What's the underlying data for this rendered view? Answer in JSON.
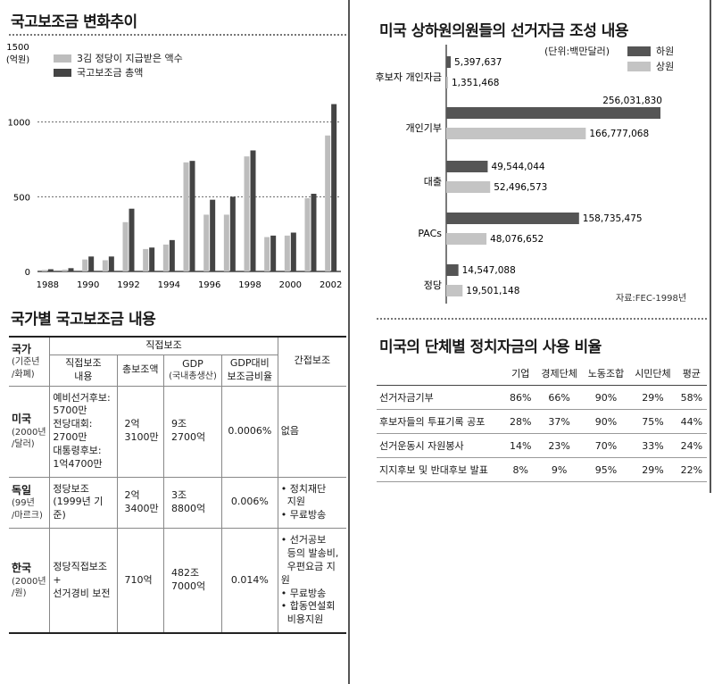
{
  "left_chart": {
    "title": "국고보조금 변화추이",
    "y_label_value": "1500",
    "y_label_unit": "(억원)",
    "ticks": [
      "1000",
      "500",
      "0"
    ],
    "x_tick_labels": [
      "1988",
      "1990",
      "1992",
      "1994",
      "1996",
      "1998",
      "2000",
      "2002"
    ],
    "legend": [
      "3김 정당이 지급받은 액수",
      "국고보조금 총액"
    ],
    "colors": {
      "light": "#bdbdbd",
      "dark": "#444444"
    }
  },
  "right_chart": {
    "title": "미국 상하원의원들의 선거자금 조성 내용",
    "unit": "(단위:백만달러)",
    "legend": [
      "하원",
      "상원"
    ],
    "categories": [
      "후보자 개인자금",
      "개인기부",
      "대출",
      "PACs",
      "정당"
    ],
    "value_labels": [
      [
        "5,397,637",
        "1,351,468"
      ],
      [
        "256,031,830",
        "166,777,068"
      ],
      [
        "49,544,044",
        "52,496,573"
      ],
      [
        "158,735,475",
        "48,076,652"
      ],
      [
        "14,547,088",
        "19,501,148"
      ]
    ],
    "source": "자료:FEC-1998년",
    "colors": {
      "house": "#555555",
      "senate": "#c4c4c4"
    }
  },
  "chart_data": [
    {
      "type": "bar",
      "title": "국고보조금 변화추이",
      "ylabel": "(억원)",
      "ylim": [
        0,
        1500
      ],
      "categories": [
        "1988",
        "1989",
        "1990",
        "1991",
        "1992",
        "1993",
        "1994",
        "1995",
        "1996",
        "1997",
        "1998",
        "1999",
        "2000",
        "2001",
        "2002"
      ],
      "series": [
        {
          "name": "3김 정당이 지급받은 액수",
          "values": [
            10,
            12,
            80,
            75,
            330,
            150,
            180,
            730,
            380,
            380,
            770,
            230,
            240,
            490,
            910
          ]
        },
        {
          "name": "국고보조금 총액",
          "values": [
            15,
            22,
            100,
            100,
            420,
            160,
            210,
            740,
            480,
            500,
            810,
            240,
            260,
            520,
            1120
          ]
        }
      ],
      "grid": true,
      "legend_position": "top-left"
    },
    {
      "type": "bar",
      "orientation": "horizontal",
      "title": "미국 상하원의원들의 선거자금 조성 내용",
      "unit": "(단위:백만달러)",
      "categories": [
        "후보자 개인자금",
        "개인기부",
        "대출",
        "PACs",
        "정당"
      ],
      "series": [
        {
          "name": "하원",
          "values": [
            5397637,
            256031830,
            49544044,
            158735475,
            14547088
          ]
        },
        {
          "name": "상원",
          "values": [
            1351468,
            166777068,
            52496573,
            48076652,
            19501148
          ]
        }
      ],
      "legend_position": "top-right",
      "source": "자료:FEC-1998년"
    },
    {
      "type": "table",
      "title": "미국의 단체별 정치자금의 사용 비율",
      "columns": [
        "",
        "기업",
        "경제단체",
        "노동조합",
        "시민단체",
        "평균"
      ],
      "rows": [
        [
          "선거자금기부",
          "86%",
          "66%",
          "90%",
          "29%",
          "58%"
        ],
        [
          "후보자들의 투표기록 공포",
          "28%",
          "37%",
          "90%",
          "75%",
          "44%"
        ],
        [
          "선거운동시 자원봉사",
          "14%",
          "23%",
          "70%",
          "33%",
          "24%"
        ],
        [
          "지지후보 및 반대후보 발표",
          "8%",
          "9%",
          "95%",
          "29%",
          "22%"
        ]
      ]
    }
  ],
  "country_table": {
    "title": "국가별 국고보조금 내용",
    "h_country": "국가",
    "h_country_sub": [
      "(기준년",
      "/화폐)"
    ],
    "h_direct": "직접보조",
    "h_content": [
      "직접보조",
      "내용"
    ],
    "h_total": "총보조액",
    "h_gdp": "GDP",
    "h_gdp_sub": "(국내총생산)",
    "h_ratio": [
      "GDP대비",
      "보조금비율"
    ],
    "h_indirect": "간접보조",
    "rows": [
      {
        "name": "미국",
        "sub": [
          "(2000년",
          "/달러)"
        ],
        "content": [
          "예비선거후보:",
          "5700만",
          "전당대회:",
          "2700만",
          "대통령후보:",
          "1억4700만"
        ],
        "total": [
          "2억",
          "3100만"
        ],
        "gdp": [
          "9조",
          "2700억"
        ],
        "ratio": "0.0006%",
        "indirect": [
          "없음"
        ]
      },
      {
        "name": "독일",
        "sub": [
          "(99년",
          "/마르크)"
        ],
        "content": [
          "정당보조",
          "(1999년 기준)"
        ],
        "total": [
          "2억",
          "3400만"
        ],
        "gdp": [
          "3조",
          "8800억"
        ],
        "ratio": "0.006%",
        "indirect": [
          "• 정치재단",
          "  지원",
          "• 무료방송"
        ]
      },
      {
        "name": "한국",
        "sub": [
          "(2000년",
          "/원)"
        ],
        "content": [
          "정당직접보조+",
          "선거경비 보전"
        ],
        "total": [
          "710억"
        ],
        "gdp": [
          "482조",
          "7000억"
        ],
        "ratio": "0.014%",
        "indirect": [
          "• 선거공보",
          "  등의 발송비,",
          "  우편요금 지원",
          "• 무료방송",
          "• 합동연설회",
          "  비용지원"
        ]
      }
    ]
  },
  "usage_table": {
    "title": "미국의 단체별 정치자금의 사용 비율"
  }
}
